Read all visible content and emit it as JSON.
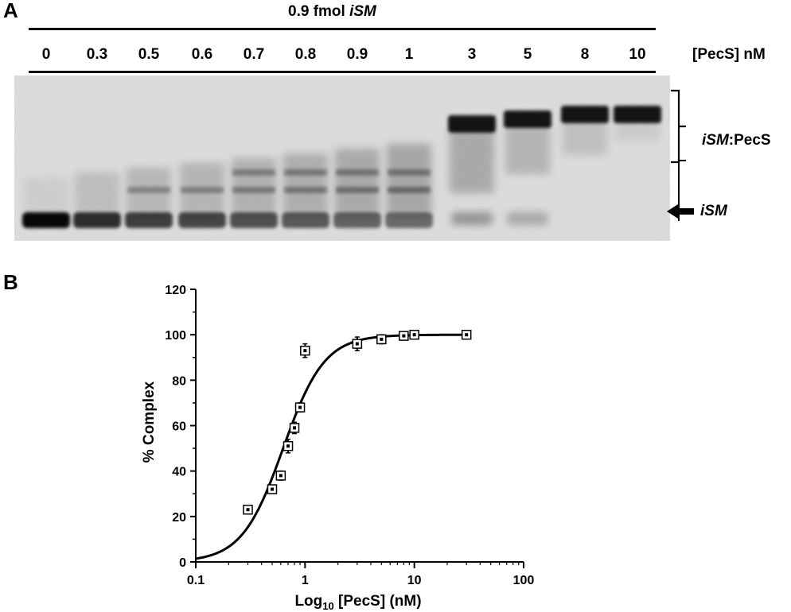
{
  "panel_a": {
    "letter": "A",
    "header_prefix": "0.9 fmol ",
    "header_italic": "iSM",
    "lane_labels": [
      "0",
      "0.3",
      "0.5",
      "0.6",
      "0.7",
      "0.8",
      "0.9",
      "1",
      "3",
      "5",
      "8",
      "10"
    ],
    "concentration_label": "[PecS] nM",
    "complex_label_italic": "iSM",
    "complex_label_rest": ":PecS",
    "free_label": "iSM",
    "free_fraction": [
      0.95,
      0.72,
      0.62,
      0.58,
      0.5,
      0.45,
      0.4,
      0.35,
      0.08,
      0.02,
      0.0,
      0.0
    ]
  },
  "panel_b": {
    "letter": "B"
  },
  "chart_data": {
    "type": "scatter",
    "xlabel_prefix": "Log",
    "xlabel_sub": "10",
    "xlabel_suffix": " [PecS] (nM)",
    "ylabel": "% Complex",
    "xscale": "log",
    "xlim": [
      0.1,
      100
    ],
    "ylim": [
      0,
      120
    ],
    "xticks": [
      0.1,
      1,
      10,
      100
    ],
    "xtick_labels": [
      "0.1",
      "1",
      "10",
      "100"
    ],
    "yticks": [
      0,
      20,
      40,
      60,
      80,
      100,
      120
    ],
    "ytick_labels": [
      "0",
      "20",
      "40",
      "60",
      "80",
      "100",
      "120"
    ],
    "grid": false,
    "series": [
      {
        "x": [
          0.3,
          0.5,
          0.6,
          0.7,
          0.8,
          0.9,
          1,
          3,
          5,
          8,
          10,
          30
        ],
        "y": [
          23,
          32,
          38,
          51,
          59,
          68,
          93,
          96,
          98,
          99.5,
          100,
          100
        ],
        "err": [
          1,
          1.5,
          2,
          3,
          2.5,
          2,
          3,
          3,
          2,
          1,
          1,
          0.5
        ]
      }
    ],
    "fit_curve": {
      "kd": 0.63,
      "hill": 2.3,
      "top": 100
    }
  }
}
